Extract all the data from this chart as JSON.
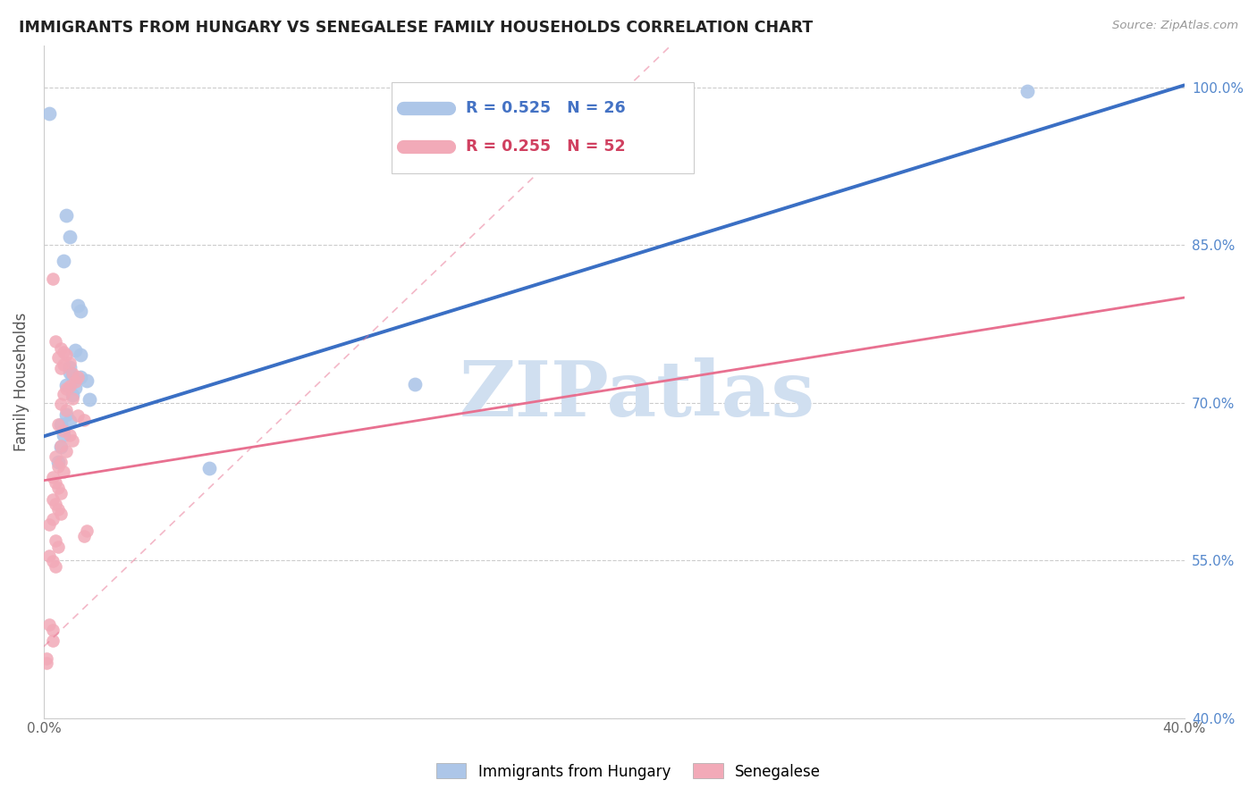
{
  "title": "IMMIGRANTS FROM HUNGARY VS SENEGALESE FAMILY HOUSEHOLDS CORRELATION CHART",
  "source": "Source: ZipAtlas.com",
  "ylabel": "Family Households",
  "xlim": [
    0.0,
    0.4
  ],
  "ylim": [
    0.4,
    1.04
  ],
  "xtick_positions": [
    0.0,
    0.05,
    0.1,
    0.15,
    0.2,
    0.25,
    0.3,
    0.35,
    0.4
  ],
  "xtick_labels": [
    "0.0%",
    "",
    "",
    "",
    "",
    "",
    "",
    "",
    "40.0%"
  ],
  "ytick_positions": [
    0.4,
    0.55,
    0.7,
    0.85,
    1.0
  ],
  "ytick_labels": [
    "40.0%",
    "55.0%",
    "70.0%",
    "85.0%",
    "100.0%"
  ],
  "blue_scatter_color": "#adc6e8",
  "pink_scatter_color": "#f2aab8",
  "blue_line_color": "#3a6fc4",
  "pink_line_color": "#e87090",
  "blue_line": {
    "x0": 0.0,
    "y0": 0.668,
    "x1": 0.4,
    "y1": 1.002
  },
  "pink_line": {
    "x0": 0.0,
    "y0": 0.626,
    "x1": 0.4,
    "y1": 0.8
  },
  "pink_dash_line": {
    "x0": 0.0,
    "y0": 0.468,
    "x1": 0.22,
    "y1": 1.04
  },
  "legend_blue_text": "R = 0.525   N = 26",
  "legend_pink_text": "R = 0.255   N = 52",
  "legend_blue_color": "#4472c4",
  "legend_pink_color": "#d04060",
  "watermark_text": "ZIPatlas",
  "watermark_color": "#d0dff0",
  "blue_scatter": [
    [
      0.002,
      0.975
    ],
    [
      0.008,
      0.878
    ],
    [
      0.009,
      0.858
    ],
    [
      0.007,
      0.835
    ],
    [
      0.012,
      0.792
    ],
    [
      0.013,
      0.787
    ],
    [
      0.011,
      0.75
    ],
    [
      0.013,
      0.746
    ],
    [
      0.009,
      0.734
    ],
    [
      0.009,
      0.729
    ],
    [
      0.01,
      0.725
    ],
    [
      0.013,
      0.724
    ],
    [
      0.015,
      0.721
    ],
    [
      0.008,
      0.717
    ],
    [
      0.011,
      0.714
    ],
    [
      0.01,
      0.707
    ],
    [
      0.016,
      0.703
    ],
    [
      0.008,
      0.689
    ],
    [
      0.009,
      0.683
    ],
    [
      0.006,
      0.679
    ],
    [
      0.007,
      0.669
    ],
    [
      0.006,
      0.658
    ],
    [
      0.005,
      0.644
    ],
    [
      0.058,
      0.638
    ],
    [
      0.13,
      0.718
    ],
    [
      0.345,
      0.996
    ]
  ],
  "pink_scatter": [
    [
      0.003,
      0.818
    ],
    [
      0.004,
      0.758
    ],
    [
      0.006,
      0.752
    ],
    [
      0.007,
      0.748
    ],
    [
      0.008,
      0.746
    ],
    [
      0.005,
      0.743
    ],
    [
      0.009,
      0.738
    ],
    [
      0.007,
      0.736
    ],
    [
      0.006,
      0.733
    ],
    [
      0.01,
      0.728
    ],
    [
      0.012,
      0.724
    ],
    [
      0.011,
      0.72
    ],
    [
      0.009,
      0.716
    ],
    [
      0.008,
      0.713
    ],
    [
      0.007,
      0.708
    ],
    [
      0.01,
      0.704
    ],
    [
      0.006,
      0.699
    ],
    [
      0.008,
      0.693
    ],
    [
      0.012,
      0.688
    ],
    [
      0.014,
      0.684
    ],
    [
      0.005,
      0.679
    ],
    [
      0.007,
      0.673
    ],
    [
      0.009,
      0.669
    ],
    [
      0.01,
      0.664
    ],
    [
      0.006,
      0.659
    ],
    [
      0.008,
      0.654
    ],
    [
      0.004,
      0.649
    ],
    [
      0.006,
      0.644
    ],
    [
      0.005,
      0.639
    ],
    [
      0.007,
      0.634
    ],
    [
      0.003,
      0.629
    ],
    [
      0.004,
      0.624
    ],
    [
      0.005,
      0.619
    ],
    [
      0.006,
      0.614
    ],
    [
      0.003,
      0.608
    ],
    [
      0.004,
      0.604
    ],
    [
      0.005,
      0.599
    ],
    [
      0.006,
      0.594
    ],
    [
      0.003,
      0.589
    ],
    [
      0.002,
      0.584
    ],
    [
      0.015,
      0.578
    ],
    [
      0.014,
      0.573
    ],
    [
      0.004,
      0.569
    ],
    [
      0.005,
      0.563
    ],
    [
      0.002,
      0.554
    ],
    [
      0.003,
      0.549
    ],
    [
      0.004,
      0.544
    ],
    [
      0.002,
      0.489
    ],
    [
      0.003,
      0.484
    ],
    [
      0.003,
      0.474
    ],
    [
      0.001,
      0.457
    ],
    [
      0.001,
      0.452
    ]
  ]
}
